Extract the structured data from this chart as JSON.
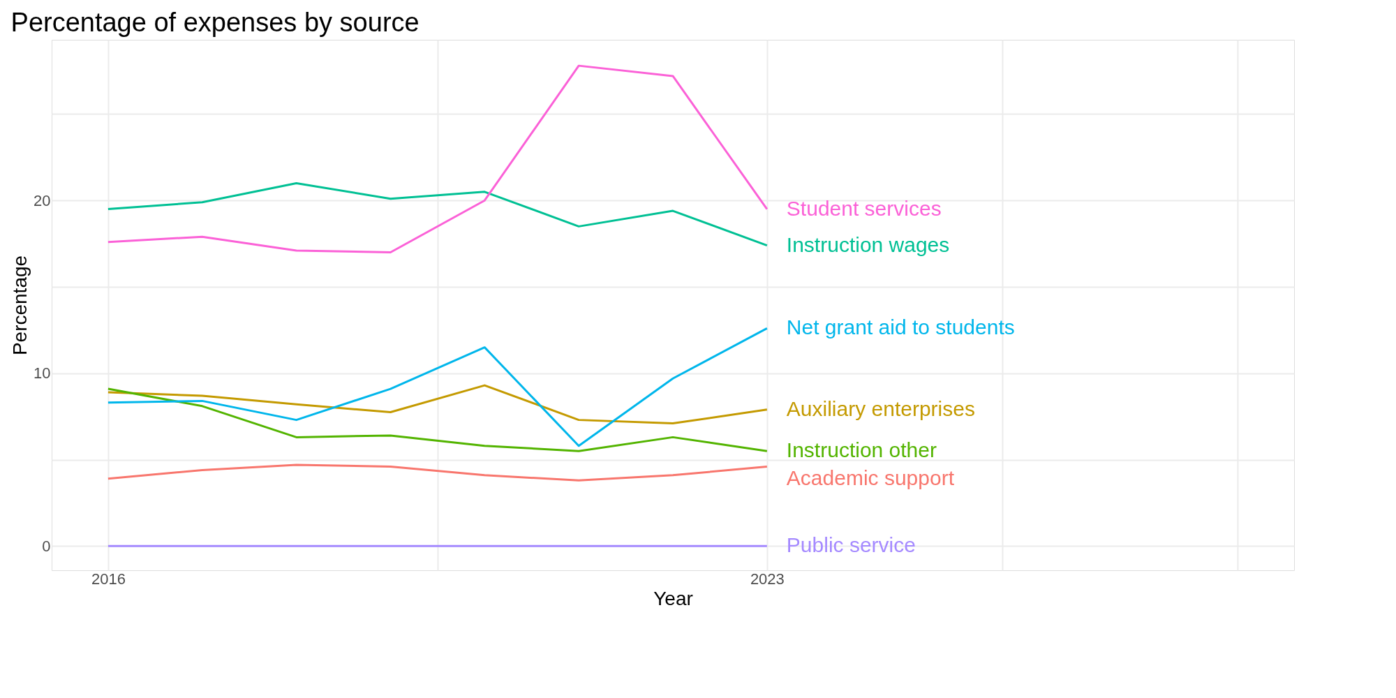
{
  "chart_data": {
    "type": "line",
    "title": "Percentage of expenses by source",
    "xlabel": "Year",
    "ylabel": "Percentage",
    "x": [
      2016,
      2017,
      2018,
      2019,
      2020,
      2021,
      2022,
      2023
    ],
    "xlim": [
      2015.4,
      2028.6
    ],
    "xticks": [
      2016,
      {
        "value": 2019.5,
        "label": null
      },
      2023,
      {
        "value": 2025.5,
        "label": null
      },
      {
        "value": 2028,
        "label": null
      }
    ],
    "ylim": [
      -1.4,
      29.3
    ],
    "yticks": [
      0,
      {
        "value": 5,
        "label": null
      },
      10,
      {
        "value": 15,
        "label": null
      },
      20,
      {
        "value": 25,
        "label": null
      }
    ],
    "grid": true,
    "marker": "none",
    "line_style": "solid",
    "series": [
      {
        "name": "Academic support",
        "color": "#f8766d",
        "values": [
          3.9,
          4.4,
          4.7,
          4.6,
          4.1,
          3.8,
          4.1,
          4.6
        ]
      },
      {
        "name": "Auxiliary enterprises",
        "color": "#c49a00",
        "values": [
          8.9,
          8.7,
          8.2,
          7.75,
          9.3,
          7.3,
          7.1,
          7.9
        ]
      },
      {
        "name": "Instruction other",
        "color": "#53b400",
        "values": [
          9.1,
          8.1,
          6.3,
          6.4,
          5.8,
          5.5,
          6.3,
          5.5
        ]
      },
      {
        "name": "Instruction wages",
        "color": "#00c094",
        "values": [
          19.5,
          19.9,
          21.0,
          20.1,
          20.5,
          18.5,
          19.4,
          17.4
        ]
      },
      {
        "name": "Net grant aid to students",
        "color": "#00b6eb",
        "values": [
          8.3,
          8.4,
          7.3,
          9.1,
          11.5,
          5.8,
          9.7,
          12.6
        ]
      },
      {
        "name": "Public service",
        "color": "#a58aff",
        "values": [
          0,
          0,
          0,
          0,
          0,
          0,
          0,
          0
        ]
      },
      {
        "name": "Student services",
        "color": "#fb61d7",
        "values": [
          17.6,
          17.9,
          17.1,
          17.0,
          20.0,
          27.8,
          27.2,
          19.5
        ]
      }
    ]
  }
}
